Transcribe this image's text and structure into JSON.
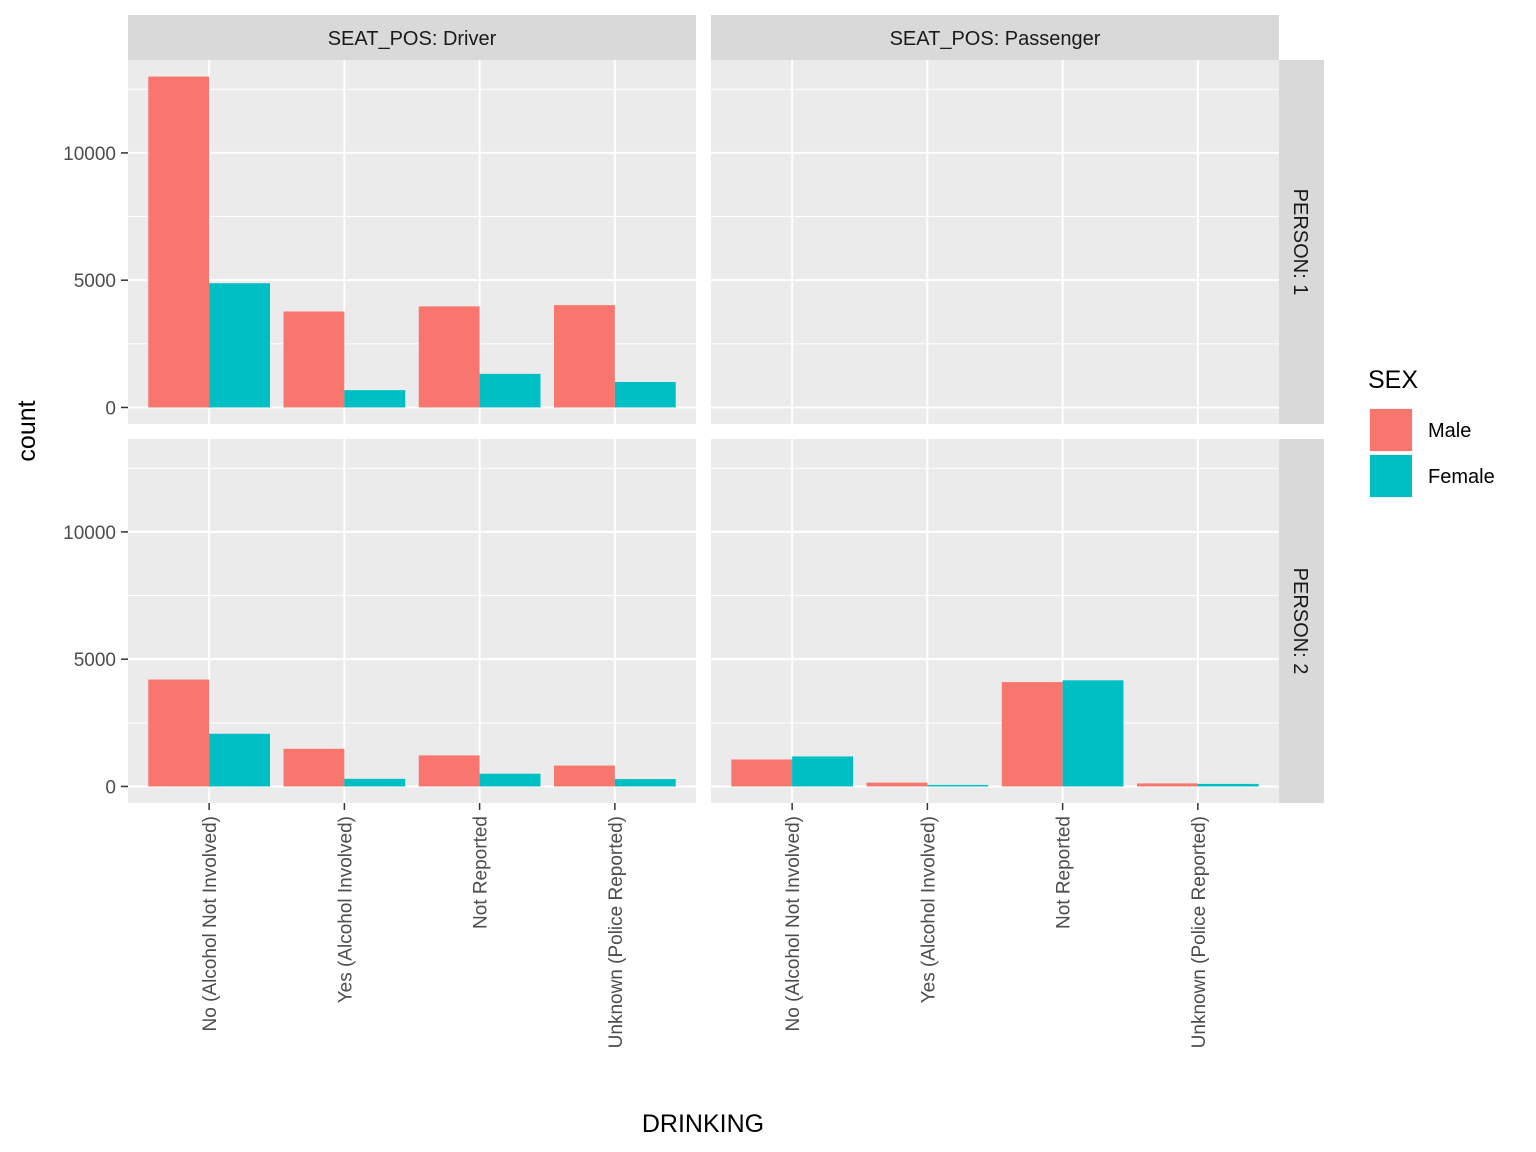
{
  "chart_data": {
    "type": "bar",
    "layout": "facet_grid",
    "xlabel": "DRINKING",
    "ylabel": "count",
    "categories": [
      "No (Alcohol Not Involved)",
      "Yes (Alcohol Involved)",
      "Not Reported",
      "Unknown (Police Reported)"
    ],
    "y_ticks": [
      0,
      5000,
      10000
    ],
    "ylim": [
      -650,
      13650
    ],
    "grid": true,
    "col_strips": [
      "SEAT_POS: Driver",
      "SEAT_POS: Passenger"
    ],
    "row_strips": [
      "PERSON: 1",
      "PERSON: 2"
    ],
    "legend": {
      "title": "SEX",
      "position": "right",
      "items": [
        {
          "label": "Male",
          "color": "#F8766D"
        },
        {
          "label": "Female",
          "color": "#00BFC4"
        }
      ]
    },
    "panels": [
      {
        "row": 0,
        "col": 0,
        "series": [
          {
            "name": "Male",
            "values": [
              13000,
              3770,
              3970,
              4020
            ]
          },
          {
            "name": "Female",
            "values": [
              4880,
              680,
              1320,
              1000
            ]
          }
        ]
      },
      {
        "row": 0,
        "col": 1,
        "series": [
          {
            "name": "Male",
            "values": [
              0,
              0,
              0,
              0
            ]
          },
          {
            "name": "Female",
            "values": [
              0,
              0,
              0,
              0
            ]
          }
        ]
      },
      {
        "row": 1,
        "col": 0,
        "series": [
          {
            "name": "Male",
            "values": [
              4200,
              1480,
              1220,
              820
            ]
          },
          {
            "name": "Female",
            "values": [
              2070,
              300,
              500,
              290
            ]
          }
        ]
      },
      {
        "row": 1,
        "col": 1,
        "series": [
          {
            "name": "Male",
            "values": [
              1060,
              150,
              4100,
              120
            ]
          },
          {
            "name": "Female",
            "values": [
              1180,
              60,
              4170,
              100
            ]
          }
        ]
      }
    ]
  }
}
